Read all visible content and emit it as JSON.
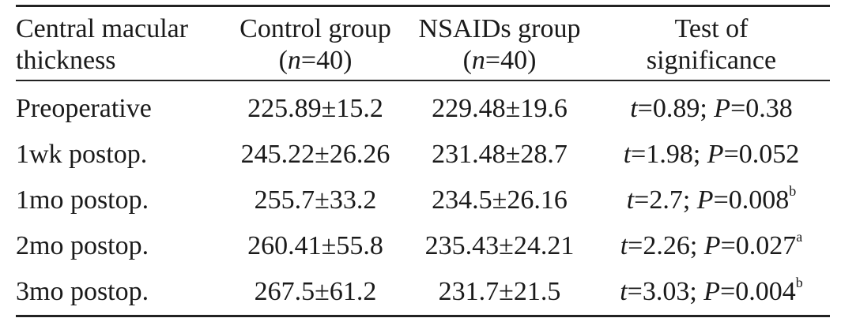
{
  "header": {
    "col0": [
      "Central macular",
      "thickness"
    ],
    "col1": {
      "line1": "Control group",
      "n_open": "(",
      "n_var": "n",
      "n_val": "=40)"
    },
    "col2": {
      "line1": "NSAIDs group",
      "n_open": "(",
      "n_var": "n",
      "n_val": "=40)"
    },
    "col3": [
      "Test of",
      "significance"
    ]
  },
  "rows": [
    {
      "label": "Preoperative",
      "control": "225.89±15.2",
      "nsaids": "229.48±19.6",
      "t": "=0.89; ",
      "p": "=0.38",
      "sup": ""
    },
    {
      "label": "1wk postop.",
      "control": "245.22±26.26",
      "nsaids": "231.48±28.7",
      "t": "=1.98; ",
      "p": "=0.052",
      "sup": ""
    },
    {
      "label": "1mo postop.",
      "control": "255.7±33.2",
      "nsaids": "234.5±26.16",
      "t": "=2.7; ",
      "p": "=0.008",
      "sup": "b"
    },
    {
      "label": "2mo postop.",
      "control": "260.41±55.8",
      "nsaids": "235.43±24.21",
      "t": "=2.26; ",
      "p": "=0.027",
      "sup": "a"
    },
    {
      "label": "3mo postop.",
      "control": "267.5±61.2",
      "nsaids": "231.7±21.5",
      "t": "=3.03; ",
      "p": "=0.004",
      "sup": "b"
    }
  ],
  "symbols": {
    "t": "t",
    "p": "P"
  }
}
